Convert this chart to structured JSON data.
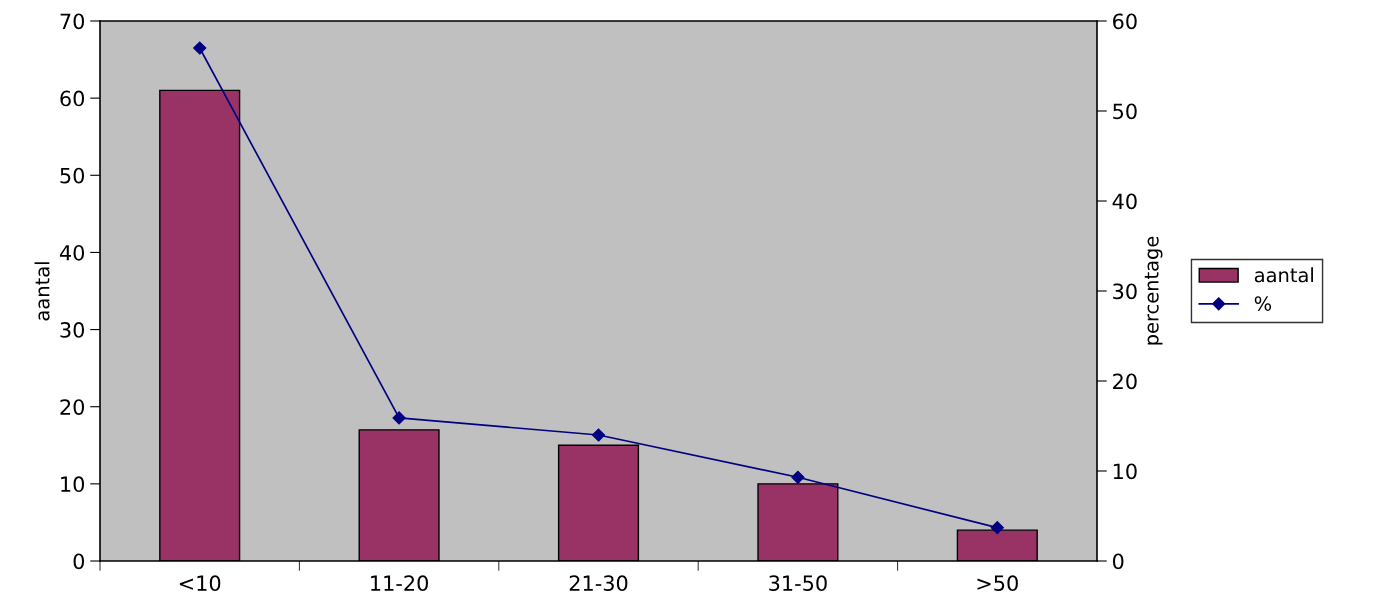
{
  "chart_data": {
    "type": "bar",
    "categories": [
      "<10",
      "11-20",
      "21-30",
      "31-50",
      ">50"
    ],
    "ylabel": "aantal",
    "y2label": "percentage",
    "series": [
      {
        "name": "aantal",
        "color": "#993366",
        "values": [
          61,
          17,
          15,
          10,
          4
        ]
      },
      {
        "name": "%",
        "type": "line",
        "axis": "y2",
        "color": "#000080",
        "marker": "diamond",
        "values": [
          57.0,
          15.9,
          14.0,
          9.3,
          3.7
        ]
      }
    ],
    "ylim": [
      0,
      70
    ],
    "yticks": [
      0,
      10,
      20,
      30,
      40,
      50,
      60,
      70
    ],
    "y2lim": [
      0,
      60
    ],
    "y2ticks": [
      0,
      10,
      20,
      30,
      40,
      50,
      60
    ],
    "grid": false,
    "legend": "right"
  }
}
